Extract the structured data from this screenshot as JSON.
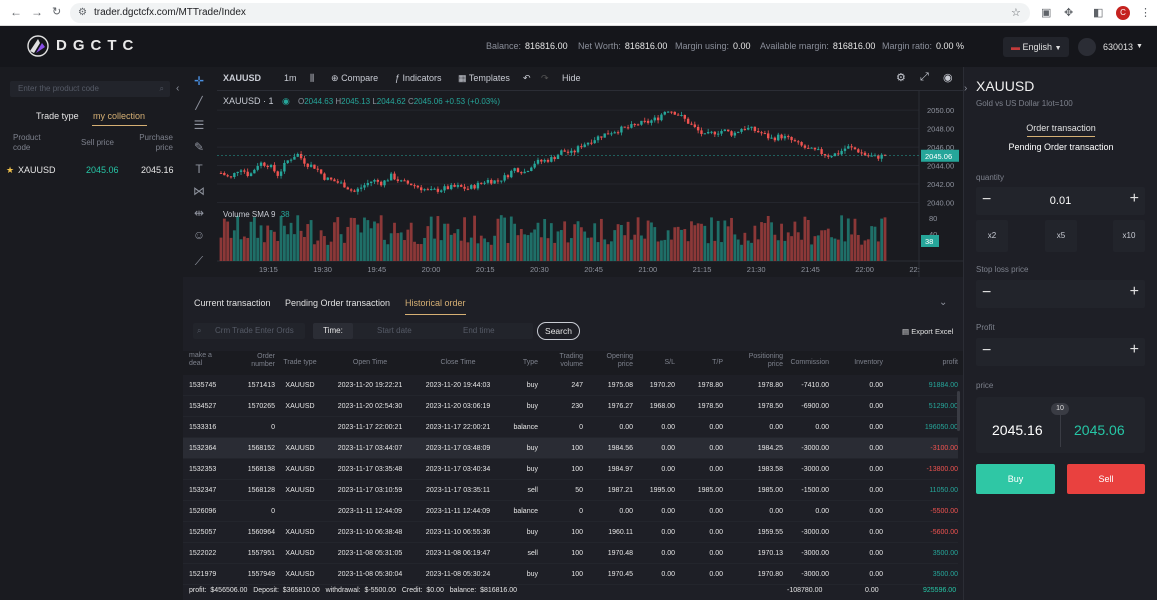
{
  "browser": {
    "url": "trader.dgctcfx.com/MTTrade/Index",
    "profile_initial": "C"
  },
  "header": {
    "brand": "DGCTC",
    "balance_label": "Balance:",
    "balance": "816816.00",
    "networth_label": "Net Worth:",
    "networth": "816816.00",
    "margin_using_label": "Margin using:",
    "margin_using": "0.00",
    "available_margin_label": "Available margin:",
    "available_margin": "816816.00",
    "margin_ratio_label": "Margin ratio:",
    "margin_ratio": "0.00 %",
    "language": "English",
    "user_id": "630013"
  },
  "left": {
    "search_placeholder": "Enter the product code",
    "tabs": [
      "Trade type",
      "my collection"
    ],
    "col_product": "Product code",
    "col_sell": "Sell price",
    "col_purchase": "Purchase price",
    "rows": [
      {
        "code": "XAUUSD",
        "sell": "2045.06",
        "purchase": "2045.16"
      }
    ]
  },
  "chart_toolbar": {
    "symbol": "XAUUSD",
    "interval": "1m",
    "compare": "Compare",
    "indicators": "Indicators",
    "templates": "Templates",
    "hide": "Hide"
  },
  "chart_info": {
    "symbol_line": "XAUUSD · 1",
    "o_label": "O",
    "o": "2044.63",
    "h_label": "H",
    "h": "2045.13",
    "l_label": "L",
    "l": "2044.62",
    "c_label": "C",
    "c": "2045.06",
    "change": "+0.53 (+0.03%)",
    "volume_label": "Volume SMA 9",
    "volume_value": "38",
    "last_price_tag": "2045.06",
    "last_volume_tag": "38"
  },
  "chart_data": {
    "type": "candlestick",
    "symbol": "XAUUSD",
    "interval": "1m",
    "x_ticks": [
      "19:15",
      "19:30",
      "19:45",
      "20:00",
      "20:15",
      "20:30",
      "20:45",
      "21:00",
      "21:15",
      "21:30",
      "21:45",
      "22:00",
      "22:"
    ],
    "y_ticks": [
      2050.0,
      2048.0,
      2046.0,
      2044.0,
      2042.0,
      2040.0
    ],
    "volume_ticks": [
      80,
      40
    ],
    "ylim": [
      2039.3,
      2051.2
    ],
    "close_path": [
      2043.2,
      2042.6,
      2043.8,
      2042.9,
      2044.3,
      2044.1,
      2043.0,
      2044.5,
      2045.3,
      2044.2,
      2043.8,
      2042.6,
      2042.3,
      2041.9,
      2041.1,
      2041.8,
      2042.4,
      2042.1,
      2042.9,
      2042.2,
      2042.0,
      2041.6,
      2041.2,
      2041.4,
      2041.6,
      2041.7,
      2041.5,
      2041.9,
      2042.4,
      2042.3,
      2042.8,
      2043.7,
      2043.3,
      2044.3,
      2044.5,
      2044.8,
      2045.6,
      2045.3,
      2046.2,
      2046.7,
      2047.2,
      2047.6,
      2047.9,
      2048.1,
      2048.5,
      2048.7,
      2049.1,
      2050.1,
      2049.7,
      2048.9,
      2048.0,
      2047.2,
      2047.6,
      2047.8,
      2047.4,
      2048.1,
      2047.9,
      2047.5,
      2046.9,
      2047.2,
      2046.8,
      2046.2,
      2045.7,
      2045.5,
      2045.1,
      2045.3,
      2046.0,
      2045.7,
      2045.1,
      2044.9,
      2045.1
    ],
    "last_price": 2045.06,
    "volume_sma": 38
  },
  "bottom": {
    "tabs": [
      "Current transaction",
      "Pending Order transaction",
      "Historical order"
    ],
    "filter_placeholder": "Crm Trade Enter Ords",
    "time_label": "Time:",
    "start_placeholder": "Start date",
    "end_placeholder": "End time",
    "search": "Search",
    "export": "Export Excel",
    "columns": [
      "make a deal",
      "Order number",
      "Trade type",
      "Open Time",
      "Close Time",
      "Type",
      "Trading volume",
      "Opening price",
      "S/L",
      "T/P",
      "Positioning price",
      "Commission",
      "Inventory",
      "profit"
    ],
    "rows": [
      [
        "1535745",
        "1571413",
        "XAUUSD",
        "2023-11-20 19:22:21",
        "2023-11-20 19:44:03",
        "buy",
        "247",
        "1975.08",
        "1970.20",
        "1978.80",
        "1978.80",
        "-7410.00",
        "0.00",
        "91884.00"
      ],
      [
        "1534527",
        "1570265",
        "XAUUSD",
        "2023-11-20 02:54:30",
        "2023-11-20 03:06:19",
        "buy",
        "230",
        "1976.27",
        "1968.00",
        "1978.50",
        "1978.50",
        "-6900.00",
        "0.00",
        "51290.00"
      ],
      [
        "1533316",
        "0",
        "",
        "2023-11-17 22:00:21",
        "2023-11-17 22:00:21",
        "balance",
        "0",
        "0.00",
        "0.00",
        "0.00",
        "0.00",
        "0.00",
        "0.00",
        "196050.00"
      ],
      [
        "1532364",
        "1568152",
        "XAUUSD",
        "2023-11-17 03:44:07",
        "2023-11-17 03:48:09",
        "buy",
        "100",
        "1984.56",
        "0.00",
        "0.00",
        "1984.25",
        "-3000.00",
        "0.00",
        "-3100.00"
      ],
      [
        "1532353",
        "1568138",
        "XAUUSD",
        "2023-11-17 03:35:48",
        "2023-11-17 03:40:34",
        "buy",
        "100",
        "1984.97",
        "0.00",
        "0.00",
        "1983.58",
        "-3000.00",
        "0.00",
        "-13800.00"
      ],
      [
        "1532347",
        "1568128",
        "XAUUSD",
        "2023-11-17 03:10:59",
        "2023-11-17 03:35:11",
        "sell",
        "50",
        "1987.21",
        "1995.00",
        "1985.00",
        "1985.00",
        "-1500.00",
        "0.00",
        "11050.00"
      ],
      [
        "1526096",
        "0",
        "",
        "2023-11-11 12:44:09",
        "2023-11-11 12:44:09",
        "balance",
        "0",
        "0.00",
        "0.00",
        "0.00",
        "0.00",
        "0.00",
        "0.00",
        "-5500.00"
      ],
      [
        "1525057",
        "1560964",
        "XAUUSD",
        "2023-11-10 06:38:48",
        "2023-11-10 06:55:36",
        "buy",
        "100",
        "1960.11",
        "0.00",
        "0.00",
        "1959.55",
        "-3000.00",
        "0.00",
        "-5600.00"
      ],
      [
        "1522022",
        "1557951",
        "XAUUSD",
        "2023-11-08 05:31:05",
        "2023-11-08 06:19:47",
        "sell",
        "100",
        "1970.48",
        "0.00",
        "0.00",
        "1970.13",
        "-3000.00",
        "0.00",
        "3500.00"
      ],
      [
        "1521979",
        "1557949",
        "XAUUSD",
        "2023-11-08 05:30:04",
        "2023-11-08 05:30:24",
        "buy",
        "100",
        "1970.45",
        "0.00",
        "0.00",
        "1970.80",
        "-3000.00",
        "0.00",
        "3500.00"
      ]
    ],
    "footer": {
      "summary": "profit:  $456506.00   Deposit:  $365810.00   withdrawal:  $-5500.00   Credit:  $0.00   balance:  $816816.00",
      "commission_total": "-108780.00",
      "inventory_total": "0.00",
      "profit_total": "925596.00"
    }
  },
  "right": {
    "symbol": "XAUUSD",
    "description": "Gold vs US Dollar 1lot=100",
    "tab_order": "Order transaction",
    "tab_pending": "Pending Order transaction",
    "quantity_label": "quantity",
    "quantity": "0.01",
    "multipliers": [
      "x2",
      "x5",
      "x10"
    ],
    "stop_loss_label": "Stop loss price",
    "profit_label": "Profit",
    "price_label": "price",
    "spread": "10",
    "bid": "2045.16",
    "ask": "2045.06",
    "buy": "Buy",
    "sell": "Sell"
  },
  "colors": {
    "up": "#26a69a",
    "down": "#ef5350",
    "accent": "#d6b074",
    "buy": "#2fc7a5",
    "sell": "#e9413f"
  }
}
